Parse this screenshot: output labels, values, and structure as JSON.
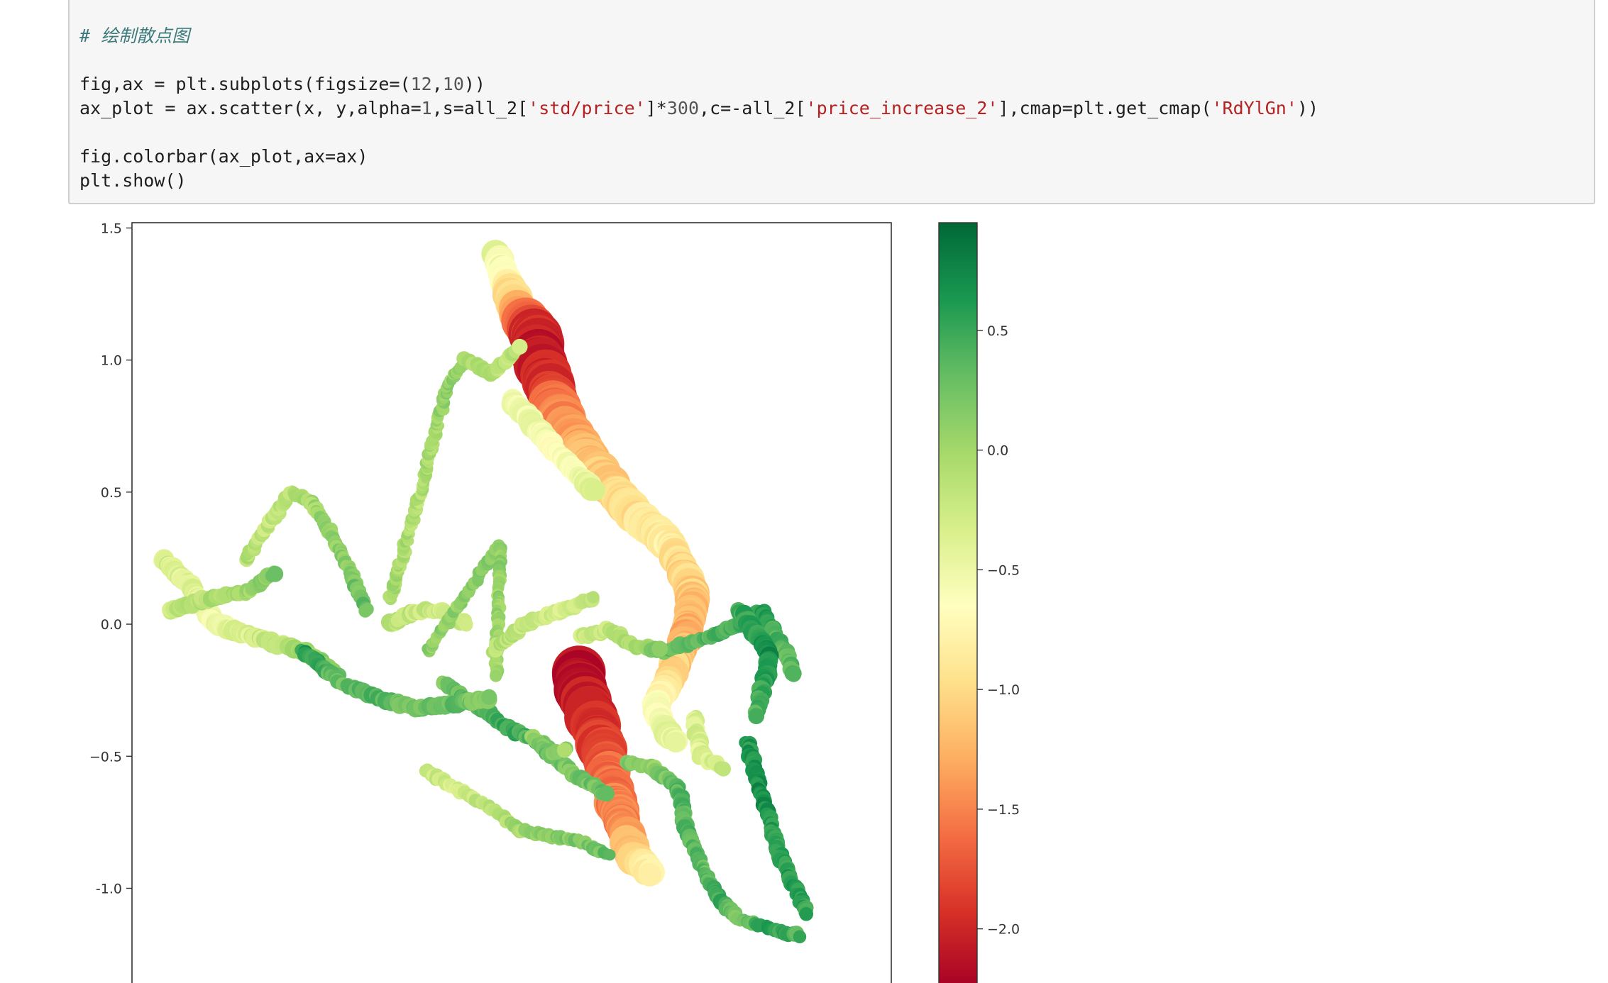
{
  "cell": {
    "code_lines": [
      {
        "segments": [
          {
            "t": "# 绘制散点图",
            "c": "cm"
          }
        ]
      },
      {
        "segments": []
      },
      {
        "segments": [
          {
            "t": "fig,ax = plt.subplots(figsize=(",
            "c": ""
          },
          {
            "t": "12",
            "c": "nm"
          },
          {
            "t": ",",
            "c": ""
          },
          {
            "t": "10",
            "c": "nm"
          },
          {
            "t": "))",
            "c": ""
          }
        ]
      },
      {
        "segments": [
          {
            "t": "ax_plot = ax.scatter(x, y,alpha=",
            "c": ""
          },
          {
            "t": "1",
            "c": "nm"
          },
          {
            "t": ",s=all_2[",
            "c": ""
          },
          {
            "t": "'std/price'",
            "c": "st"
          },
          {
            "t": "]*",
            "c": ""
          },
          {
            "t": "300",
            "c": "nm"
          },
          {
            "t": ",c=-all_2[",
            "c": ""
          },
          {
            "t": "'price_increase_2'",
            "c": "st"
          },
          {
            "t": "],cmap=plt.get_cmap(",
            "c": ""
          },
          {
            "t": "'RdYlGn'",
            "c": "st"
          },
          {
            "t": "))",
            "c": ""
          }
        ]
      },
      {
        "segments": []
      },
      {
        "segments": [
          {
            "t": "fig.colorbar(ax_plot,ax=ax)",
            "c": ""
          }
        ]
      },
      {
        "segments": [
          {
            "t": "plt.show()",
            "c": ""
          }
        ]
      }
    ]
  },
  "chart_data": {
    "type": "scatter",
    "title": "",
    "xlabel": "",
    "ylabel": "",
    "xlim": [
      -1.0,
      1.0
    ],
    "ylim": [
      -1.38,
      1.52
    ],
    "yticks": [
      1.5,
      1.0,
      0.5,
      0.0,
      -0.5,
      -1.0
    ],
    "ytick_labels": [
      "1.5",
      "1.0",
      "0.5",
      "0.0",
      "−0.5",
      "-1.0"
    ],
    "grid": false,
    "colormap": "RdYlGn",
    "colorbar": {
      "range": [
        -2.25,
        0.95
      ],
      "ticks": [
        0.5,
        0.0,
        -0.5,
        -1.0,
        -1.5,
        -2.0
      ],
      "tick_labels": [
        "0.5",
        "0.0",
        "−0.5",
        "−1.0",
        "−1.5",
        "−2.0"
      ]
    },
    "tracks": [
      {
        "c": [
          -0.4,
          -1.1,
          -1.9,
          -2.15,
          -1.6,
          -1.2,
          -1.0,
          -0.8
        ],
        "s": [
          0.15,
          0.28,
          0.5,
          0.55,
          0.45,
          0.35,
          0.3,
          0.25
        ],
        "pts": [
          [
            -0.04,
            1.4
          ],
          [
            0.01,
            1.2
          ],
          [
            0.06,
            1.1
          ],
          [
            0.08,
            0.97
          ],
          [
            0.12,
            0.8
          ],
          [
            0.2,
            0.62
          ],
          [
            0.3,
            0.45
          ],
          [
            0.42,
            0.3
          ]
        ]
      },
      {
        "c": [
          -0.9,
          -1.1,
          -1.3,
          -1.0,
          -0.7,
          -0.5,
          -0.4
        ],
        "s": [
          0.2,
          0.22,
          0.2,
          0.18,
          0.15,
          0.13,
          0.12
        ],
        "pts": [
          [
            0.42,
            0.3
          ],
          [
            0.48,
            0.1
          ],
          [
            0.46,
            -0.05
          ],
          [
            0.42,
            -0.2
          ],
          [
            0.38,
            -0.3
          ],
          [
            0.4,
            -0.4
          ],
          [
            0.44,
            -0.45
          ]
        ]
      },
      {
        "c": [
          -0.6,
          -0.5,
          -0.7,
          -0.4
        ],
        "s": [
          0.12,
          0.12,
          0.1,
          0.1
        ],
        "pts": [
          [
            0.0,
            0.85
          ],
          [
            0.06,
            0.75
          ],
          [
            0.12,
            0.65
          ],
          [
            0.22,
            0.5
          ]
        ]
      },
      {
        "c": [
          -2.15,
          -2.05,
          -1.8,
          -1.6,
          -1.5,
          -1.1,
          -0.7
        ],
        "s": [
          0.55,
          0.5,
          0.42,
          0.35,
          0.3,
          0.22,
          0.15
        ],
        "pts": [
          [
            0.17,
            -0.18
          ],
          [
            0.21,
            -0.35
          ],
          [
            0.24,
            -0.48
          ],
          [
            0.26,
            -0.6
          ],
          [
            0.29,
            -0.75
          ],
          [
            0.32,
            -0.88
          ],
          [
            0.37,
            -0.95
          ]
        ]
      },
      {
        "c": [
          0.3,
          0.1,
          0.35,
          0.4,
          0.3,
          0.5,
          0.2,
          0.6,
          0.4
        ],
        "s": [
          0.04,
          0.05,
          0.05,
          0.05,
          0.04,
          0.05,
          0.04,
          0.04,
          0.05
        ],
        "pts": [
          [
            0.3,
            -0.52
          ],
          [
            0.38,
            -0.55
          ],
          [
            0.44,
            -0.62
          ],
          [
            0.46,
            -0.78
          ],
          [
            0.5,
            -0.92
          ],
          [
            0.55,
            -1.05
          ],
          [
            0.6,
            -1.12
          ],
          [
            0.68,
            -1.15
          ],
          [
            0.76,
            -1.18
          ]
        ]
      },
      {
        "c": [
          0.6,
          0.7,
          0.5,
          0.6,
          0.5
        ],
        "s": [
          0.05,
          0.05,
          0.05,
          0.05,
          0.04
        ],
        "pts": [
          [
            0.62,
            -0.45
          ],
          [
            0.66,
            -0.65
          ],
          [
            0.7,
            -0.85
          ],
          [
            0.74,
            -0.98
          ],
          [
            0.78,
            -1.1
          ]
        ]
      },
      {
        "c": [
          0.3,
          0.4,
          0.5,
          0.6,
          0.4,
          0.3
        ],
        "s": [
          0.05,
          0.05,
          0.05,
          0.05,
          0.05,
          0.05
        ],
        "pts": [
          [
            0.4,
            -0.1
          ],
          [
            0.52,
            -0.05
          ],
          [
            0.6,
            0.0
          ],
          [
            0.66,
            0.05
          ],
          [
            0.7,
            -0.05
          ],
          [
            0.75,
            -0.2
          ]
        ]
      },
      {
        "c": [
          0.2,
          0.4,
          0.5,
          0.3,
          0.2,
          0.3
        ],
        "s": [
          0.05,
          0.05,
          0.05,
          0.05,
          0.05,
          0.05
        ],
        "pts": [
          [
            -0.18,
            -0.22
          ],
          [
            -0.1,
            -0.3
          ],
          [
            0.0,
            -0.4
          ],
          [
            0.08,
            -0.45
          ],
          [
            0.15,
            -0.55
          ],
          [
            0.25,
            -0.65
          ]
        ]
      },
      {
        "c": [
          -0.2,
          -0.3,
          -0.1,
          0.0,
          0.1,
          0.2,
          0.3
        ],
        "s": [
          0.04,
          0.04,
          0.04,
          0.04,
          0.04,
          0.04,
          0.04
        ],
        "pts": [
          [
            -0.23,
            -0.55
          ],
          [
            -0.15,
            -0.62
          ],
          [
            -0.05,
            -0.7
          ],
          [
            0.02,
            -0.78
          ],
          [
            0.1,
            -0.8
          ],
          [
            0.18,
            -0.82
          ],
          [
            0.26,
            -0.88
          ]
        ]
      },
      {
        "c": [
          -0.3,
          -0.4,
          -0.5,
          -0.3,
          0.0,
          0.2
        ],
        "s": [
          0.08,
          0.09,
          0.1,
          0.08,
          0.07,
          0.07
        ],
        "pts": [
          [
            -0.92,
            0.25
          ],
          [
            -0.85,
            0.15
          ],
          [
            -0.78,
            0.0
          ],
          [
            -0.68,
            -0.05
          ],
          [
            -0.55,
            -0.1
          ],
          [
            -0.45,
            -0.2
          ]
        ]
      },
      {
        "c": [
          -0.2,
          -0.1,
          0.0,
          0.2
        ],
        "s": [
          0.06,
          0.06,
          0.05,
          0.05
        ],
        "pts": [
          [
            -0.9,
            0.05
          ],
          [
            -0.8,
            0.1
          ],
          [
            -0.7,
            0.12
          ],
          [
            -0.62,
            0.2
          ]
        ]
      },
      {
        "c": [
          -0.1,
          -0.2,
          -0.1,
          0.0,
          0.1
        ],
        "s": [
          0.04,
          0.04,
          0.04,
          0.04,
          0.04
        ],
        "pts": [
          [
            -0.7,
            0.25
          ],
          [
            -0.63,
            0.4
          ],
          [
            -0.58,
            0.5
          ],
          [
            -0.52,
            0.45
          ],
          [
            -0.46,
            0.3
          ]
        ]
      },
      {
        "c": [
          0.1,
          0.2,
          0.3
        ],
        "s": [
          0.04,
          0.04,
          0.04
        ],
        "pts": [
          [
            -0.46,
            0.3
          ],
          [
            -0.42,
            0.18
          ],
          [
            -0.38,
            0.05
          ]
        ]
      },
      {
        "c": [
          0.6,
          0.3,
          0.4,
          0.2,
          0.3,
          0.1
        ],
        "s": [
          0.05,
          0.05,
          0.06,
          0.06,
          0.07,
          0.07
        ],
        "pts": [
          [
            -0.55,
            -0.1
          ],
          [
            -0.45,
            -0.22
          ],
          [
            -0.35,
            -0.28
          ],
          [
            -0.25,
            -0.32
          ],
          [
            -0.15,
            -0.3
          ],
          [
            -0.05,
            -0.28
          ]
        ]
      },
      {
        "c": [
          -0.1,
          -0.2,
          -0.3,
          -0.2
        ],
        "s": [
          0.06,
          0.06,
          0.06,
          0.06
        ],
        "pts": [
          [
            -0.32,
            0.0
          ],
          [
            -0.25,
            0.05
          ],
          [
            -0.18,
            0.05
          ],
          [
            -0.12,
            0.0
          ]
        ]
      },
      {
        "c": [
          0.0,
          -0.1,
          0.1,
          0.0
        ],
        "s": [
          0.03,
          0.03,
          0.03,
          0.03
        ],
        "pts": [
          [
            -0.32,
            0.1
          ],
          [
            -0.25,
            0.45
          ],
          [
            -0.17,
            0.9
          ],
          [
            -0.12,
            1.0
          ]
        ]
      },
      {
        "c": [
          0.1,
          0.1,
          0.0
        ],
        "s": [
          0.03,
          0.03,
          0.03
        ],
        "pts": [
          [
            -0.22,
            -0.1
          ],
          [
            -0.03,
            0.3
          ],
          [
            -0.04,
            -0.2
          ]
        ]
      },
      {
        "c": [
          0.0,
          -0.1,
          -0.2
        ],
        "s": [
          0.05,
          0.05,
          0.05
        ],
        "pts": [
          [
            -0.12,
            1.0
          ],
          [
            -0.05,
            0.95
          ],
          [
            0.02,
            1.05
          ]
        ]
      },
      {
        "c": [
          -0.1,
          -0.2,
          -0.3,
          -0.2
        ],
        "s": [
          0.05,
          0.05,
          0.05,
          0.05
        ],
        "pts": [
          [
            -0.05,
            -0.1
          ],
          [
            0.03,
            0.0
          ],
          [
            0.13,
            0.05
          ],
          [
            0.22,
            0.1
          ]
        ]
      },
      {
        "c": [
          -0.3,
          -0.2,
          0.0,
          0.2
        ],
        "s": [
          0.05,
          0.05,
          0.05,
          0.05
        ],
        "pts": [
          [
            0.18,
            -0.05
          ],
          [
            0.26,
            -0.02
          ],
          [
            0.32,
            -0.08
          ],
          [
            0.4,
            -0.1
          ]
        ]
      },
      {
        "c": [
          0.5,
          0.6,
          0.7,
          0.5,
          0.4
        ],
        "s": [
          0.06,
          0.07,
          0.07,
          0.06,
          0.05
        ],
        "pts": [
          [
            0.6,
            0.05
          ],
          [
            0.65,
            -0.05
          ],
          [
            0.68,
            -0.12
          ],
          [
            0.66,
            -0.25
          ],
          [
            0.64,
            -0.35
          ]
        ]
      },
      {
        "c": [
          -0.3,
          -0.4,
          -0.2
        ],
        "s": [
          0.06,
          0.06,
          0.06
        ],
        "pts": [
          [
            0.48,
            -0.35
          ],
          [
            0.5,
            -0.5
          ],
          [
            0.56,
            -0.55
          ]
        ]
      },
      {
        "c": [
          0.1,
          0.3,
          0.0
        ],
        "s": [
          0.05,
          0.05,
          0.05
        ],
        "pts": [
          [
            0.05,
            -0.42
          ],
          [
            0.1,
            -0.5
          ],
          [
            0.15,
            -0.47
          ]
        ]
      }
    ]
  }
}
